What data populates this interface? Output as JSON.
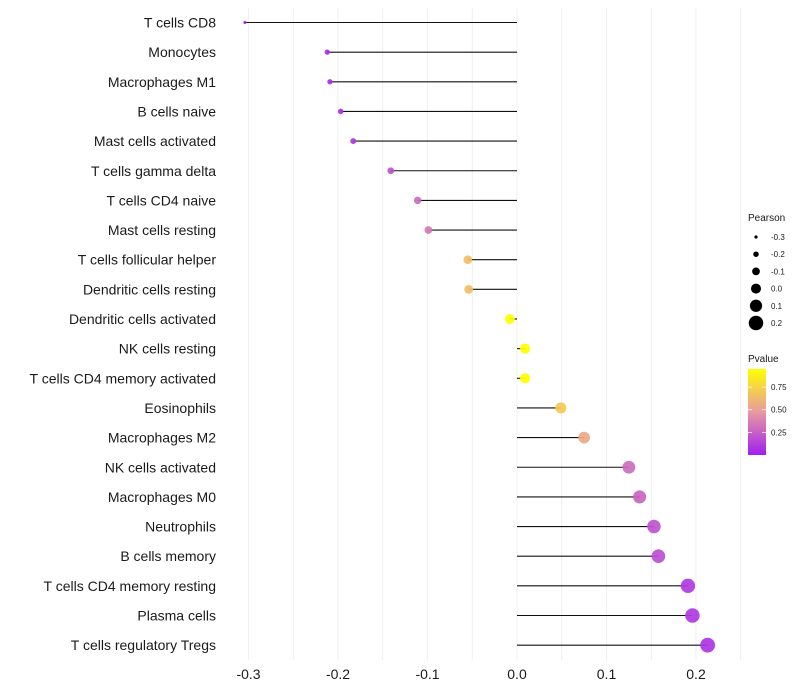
{
  "chart_data": {
    "type": "lollipop",
    "title": "",
    "xlabel": "",
    "ylabel": "",
    "xlim": [
      -0.31,
      0.25
    ],
    "x_ticks": [
      -0.3,
      -0.2,
      -0.1,
      0.0,
      0.1,
      0.2
    ],
    "x_tick_labels": [
      "-0.3",
      "-0.2",
      "-0.1",
      "0.0",
      "0.1",
      "0.2"
    ],
    "grid": true,
    "baseline": 0.0,
    "categories": [
      "T cells CD8",
      "Monocytes",
      "Macrophages M1",
      "B cells naive",
      "Mast cells activated",
      "T cells gamma delta",
      "T cells CD4 naive",
      "Mast cells resting",
      "T cells follicular helper",
      "Dendritic cells resting",
      "Dendritic cells activated",
      "NK cells resting",
      "T cells CD4 memory activated",
      "Eosinophils",
      "Macrophages M2",
      "NK cells activated",
      "Macrophages M0",
      "Neutrophils",
      "B cells memory",
      "T cells CD4 memory resting",
      "Plasma cells",
      "T cells regulatory  Tregs"
    ],
    "series": [
      {
        "name": "Pearson",
        "values": [
          -0.304,
          -0.212,
          -0.209,
          -0.197,
          -0.183,
          -0.141,
          -0.111,
          -0.099,
          -0.055,
          -0.054,
          -0.008,
          0.009,
          0.009,
          0.049,
          0.075,
          0.125,
          0.137,
          0.153,
          0.158,
          0.191,
          0.196,
          0.213
        ]
      },
      {
        "name": "Pvalue",
        "values": [
          0.02,
          0.05,
          0.06,
          0.07,
          0.08,
          0.2,
          0.3,
          0.35,
          0.65,
          0.65,
          0.95,
          0.95,
          0.95,
          0.7,
          0.55,
          0.3,
          0.27,
          0.2,
          0.18,
          0.1,
          0.1,
          0.08
        ]
      }
    ],
    "size_legend": {
      "title": "Pearson",
      "entries": [
        {
          "label": "-0.3",
          "value": -0.3
        },
        {
          "label": "-0.2",
          "value": -0.2
        },
        {
          "label": "-0.1",
          "value": -0.1
        },
        {
          "label": "0.0",
          "value": 0.0
        },
        {
          "label": "0.1",
          "value": 0.1
        },
        {
          "label": "0.2",
          "value": 0.2
        }
      ]
    },
    "color_legend": {
      "title": "Pvalue",
      "range": [
        0.0,
        0.95
      ],
      "ticks": [
        0.25,
        0.5,
        0.75
      ],
      "tick_labels": [
        "0.25",
        "0.50",
        "0.75"
      ],
      "low_color": "#A020F0",
      "mid_color": "#E89AA0",
      "high_color": "#FFFF00"
    },
    "legend_position": "right"
  }
}
